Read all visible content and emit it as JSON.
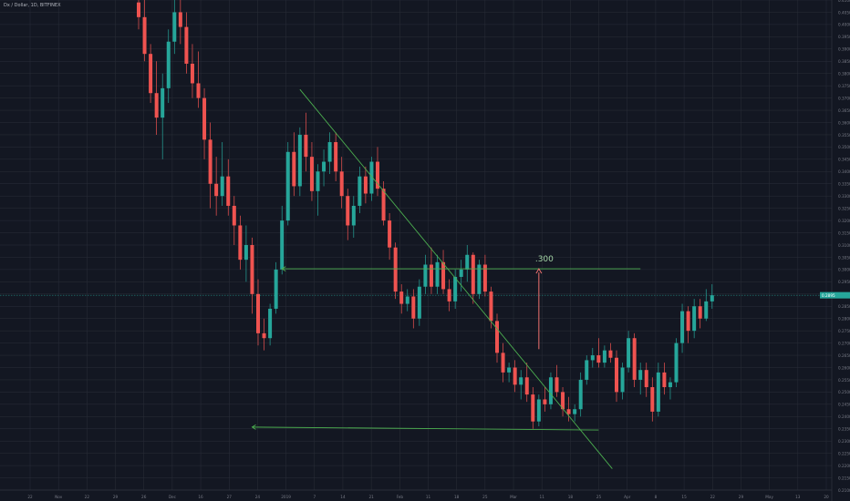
{
  "header": {
    "symbol": "Dx / Dollar, 1D, BITFINEX"
  },
  "colors": {
    "background": "#131722",
    "grid": "#2a2e39",
    "up": "#26a69a",
    "down": "#ef5350",
    "drawing": "#4caf50",
    "arrow": "#f0716f",
    "price_line": "#26a69a",
    "axis_text": "#787b86"
  },
  "chart_data": {
    "type": "candlestick",
    "title": "",
    "xlabel": "",
    "ylabel": "",
    "grid": true,
    "ylim": [
      0.21,
      0.41
    ],
    "y_axis_side": "right",
    "y_ticks": [
      "0.4100",
      "0.4050",
      "0.4000",
      "0.3950",
      "0.3900",
      "0.3850",
      "0.3800",
      "0.3750",
      "0.3700",
      "0.3650",
      "0.3600",
      "0.3550",
      "0.3500",
      "0.3450",
      "0.3400",
      "0.3350",
      "0.3300",
      "0.3250",
      "0.3200",
      "0.3150",
      "0.3100",
      "0.3050",
      "0.3000",
      "0.2950",
      "0.2900",
      "0.2850",
      "0.2800",
      "0.2750",
      "0.2700",
      "0.2650",
      "0.2600",
      "0.2550",
      "0.2500",
      "0.2450",
      "0.2400",
      "0.2350",
      "0.2300",
      "0.2250",
      "0.2200",
      "0.2150",
      "0.2100"
    ],
    "x_ticks": [
      "22",
      "Nov",
      "22",
      "29",
      "26",
      "Dec",
      "16",
      "27",
      "24",
      "2019",
      "7",
      "14",
      "21",
      "Feb",
      "11",
      "18",
      "25",
      "Mar",
      "11",
      "18",
      "25",
      "Apr",
      "8",
      "15",
      "22",
      "29",
      "May",
      "13",
      "20"
    ],
    "last_price": 0.2895,
    "last_price_label": "0.2895",
    "annotations": [
      {
        "text": ".300",
        "value": 0.3
      }
    ],
    "drawings": [
      {
        "kind": "trendline",
        "description": "descending resistance",
        "from": {
          "x_index": 27,
          "y": 0.3735
        },
        "to": {
          "x_index": 77,
          "y": 0.2255
        }
      },
      {
        "kind": "horizontal",
        "description": "breakout target",
        "from": {
          "x_index": 24,
          "y": 0.3003
        },
        "to": {
          "x_index": 84,
          "y": 0.3003
        }
      },
      {
        "kind": "horizontal",
        "description": "support",
        "from": {
          "x_index": 19,
          "y": 0.2357
        },
        "to": {
          "x_index": 77,
          "y": 0.2345
        }
      },
      {
        "kind": "arrow",
        "description": "measured move",
        "from": {
          "x_index": 67,
          "y": 0.2675
        },
        "to": {
          "x_index": 67,
          "y": 0.3003
        }
      }
    ],
    "candles": [
      {
        "o": 0.409,
        "h": 0.424,
        "l": 0.398,
        "c": 0.403
      },
      {
        "o": 0.403,
        "h": 0.412,
        "l": 0.385,
        "c": 0.388
      },
      {
        "o": 0.388,
        "h": 0.392,
        "l": 0.368,
        "c": 0.372
      },
      {
        "o": 0.372,
        "h": 0.385,
        "l": 0.355,
        "c": 0.362
      },
      {
        "o": 0.362,
        "h": 0.38,
        "l": 0.345,
        "c": 0.374
      },
      {
        "o": 0.374,
        "h": 0.398,
        "l": 0.368,
        "c": 0.393
      },
      {
        "o": 0.393,
        "h": 0.41,
        "l": 0.388,
        "c": 0.405
      },
      {
        "o": 0.405,
        "h": 0.418,
        "l": 0.392,
        "c": 0.399
      },
      {
        "o": 0.399,
        "h": 0.405,
        "l": 0.38,
        "c": 0.384
      },
      {
        "o": 0.384,
        "h": 0.392,
        "l": 0.37,
        "c": 0.376
      },
      {
        "o": 0.376,
        "h": 0.389,
        "l": 0.366,
        "c": 0.37
      },
      {
        "o": 0.37,
        "h": 0.374,
        "l": 0.345,
        "c": 0.353
      },
      {
        "o": 0.353,
        "h": 0.36,
        "l": 0.325,
        "c": 0.335
      },
      {
        "o": 0.335,
        "h": 0.346,
        "l": 0.322,
        "c": 0.33
      },
      {
        "o": 0.33,
        "h": 0.352,
        "l": 0.326,
        "c": 0.338
      },
      {
        "o": 0.338,
        "h": 0.345,
        "l": 0.322,
        "c": 0.326
      },
      {
        "o": 0.326,
        "h": 0.33,
        "l": 0.31,
        "c": 0.318
      },
      {
        "o": 0.318,
        "h": 0.322,
        "l": 0.3,
        "c": 0.304
      },
      {
        "o": 0.304,
        "h": 0.318,
        "l": 0.295,
        "c": 0.31
      },
      {
        "o": 0.31,
        "h": 0.313,
        "l": 0.282,
        "c": 0.29
      },
      {
        "o": 0.29,
        "h": 0.296,
        "l": 0.269,
        "c": 0.274
      },
      {
        "o": 0.274,
        "h": 0.28,
        "l": 0.267,
        "c": 0.272
      },
      {
        "o": 0.272,
        "h": 0.286,
        "l": 0.269,
        "c": 0.284
      },
      {
        "o": 0.284,
        "h": 0.303,
        "l": 0.282,
        "c": 0.3
      },
      {
        "o": 0.3,
        "h": 0.326,
        "l": 0.298,
        "c": 0.32
      },
      {
        "o": 0.32,
        "h": 0.352,
        "l": 0.318,
        "c": 0.348
      },
      {
        "o": 0.348,
        "h": 0.356,
        "l": 0.33,
        "c": 0.334
      },
      {
        "o": 0.334,
        "h": 0.358,
        "l": 0.33,
        "c": 0.355
      },
      {
        "o": 0.355,
        "h": 0.364,
        "l": 0.34,
        "c": 0.346
      },
      {
        "o": 0.346,
        "h": 0.352,
        "l": 0.328,
        "c": 0.332
      },
      {
        "o": 0.332,
        "h": 0.343,
        "l": 0.322,
        "c": 0.34
      },
      {
        "o": 0.34,
        "h": 0.349,
        "l": 0.334,
        "c": 0.344
      },
      {
        "o": 0.344,
        "h": 0.356,
        "l": 0.339,
        "c": 0.352
      },
      {
        "o": 0.352,
        "h": 0.356,
        "l": 0.336,
        "c": 0.34
      },
      {
        "o": 0.34,
        "h": 0.346,
        "l": 0.325,
        "c": 0.33
      },
      {
        "o": 0.33,
        "h": 0.333,
        "l": 0.312,
        "c": 0.318
      },
      {
        "o": 0.318,
        "h": 0.33,
        "l": 0.313,
        "c": 0.326
      },
      {
        "o": 0.326,
        "h": 0.342,
        "l": 0.323,
        "c": 0.338
      },
      {
        "o": 0.338,
        "h": 0.342,
        "l": 0.327,
        "c": 0.331
      },
      {
        "o": 0.331,
        "h": 0.346,
        "l": 0.328,
        "c": 0.344
      },
      {
        "o": 0.344,
        "h": 0.35,
        "l": 0.33,
        "c": 0.333
      },
      {
        "o": 0.333,
        "h": 0.336,
        "l": 0.318,
        "c": 0.32
      },
      {
        "o": 0.32,
        "h": 0.323,
        "l": 0.304,
        "c": 0.309
      },
      {
        "o": 0.309,
        "h": 0.311,
        "l": 0.288,
        "c": 0.291
      },
      {
        "o": 0.291,
        "h": 0.294,
        "l": 0.282,
        "c": 0.286
      },
      {
        "o": 0.286,
        "h": 0.292,
        "l": 0.283,
        "c": 0.289
      },
      {
        "o": 0.289,
        "h": 0.292,
        "l": 0.276,
        "c": 0.28
      },
      {
        "o": 0.28,
        "h": 0.296,
        "l": 0.277,
        "c": 0.293
      },
      {
        "o": 0.293,
        "h": 0.306,
        "l": 0.29,
        "c": 0.302
      },
      {
        "o": 0.302,
        "h": 0.309,
        "l": 0.29,
        "c": 0.293
      },
      {
        "o": 0.293,
        "h": 0.306,
        "l": 0.29,
        "c": 0.303
      },
      {
        "o": 0.303,
        "h": 0.308,
        "l": 0.29,
        "c": 0.292
      },
      {
        "o": 0.292,
        "h": 0.296,
        "l": 0.283,
        "c": 0.287
      },
      {
        "o": 0.287,
        "h": 0.3,
        "l": 0.284,
        "c": 0.297
      },
      {
        "o": 0.297,
        "h": 0.304,
        "l": 0.291,
        "c": 0.3
      },
      {
        "o": 0.3,
        "h": 0.31,
        "l": 0.295,
        "c": 0.306
      },
      {
        "o": 0.306,
        "h": 0.307,
        "l": 0.286,
        "c": 0.29
      },
      {
        "o": 0.29,
        "h": 0.304,
        "l": 0.288,
        "c": 0.302
      },
      {
        "o": 0.302,
        "h": 0.306,
        "l": 0.289,
        "c": 0.291
      },
      {
        "o": 0.291,
        "h": 0.293,
        "l": 0.276,
        "c": 0.279
      },
      {
        "o": 0.279,
        "h": 0.282,
        "l": 0.262,
        "c": 0.266
      },
      {
        "o": 0.266,
        "h": 0.27,
        "l": 0.254,
        "c": 0.258
      },
      {
        "o": 0.258,
        "h": 0.262,
        "l": 0.254,
        "c": 0.26
      },
      {
        "o": 0.26,
        "h": 0.263,
        "l": 0.25,
        "c": 0.253
      },
      {
        "o": 0.253,
        "h": 0.259,
        "l": 0.247,
        "c": 0.256
      },
      {
        "o": 0.256,
        "h": 0.262,
        "l": 0.246,
        "c": 0.249
      },
      {
        "o": 0.249,
        "h": 0.252,
        "l": 0.235,
        "c": 0.238
      },
      {
        "o": 0.238,
        "h": 0.249,
        "l": 0.236,
        "c": 0.247
      },
      {
        "o": 0.247,
        "h": 0.252,
        "l": 0.242,
        "c": 0.245
      },
      {
        "o": 0.245,
        "h": 0.258,
        "l": 0.243,
        "c": 0.256
      },
      {
        "o": 0.256,
        "h": 0.261,
        "l": 0.248,
        "c": 0.25
      },
      {
        "o": 0.25,
        "h": 0.252,
        "l": 0.24,
        "c": 0.243
      },
      {
        "o": 0.243,
        "h": 0.248,
        "l": 0.238,
        "c": 0.241
      },
      {
        "o": 0.241,
        "h": 0.245,
        "l": 0.238,
        "c": 0.243
      },
      {
        "o": 0.243,
        "h": 0.258,
        "l": 0.24,
        "c": 0.255
      },
      {
        "o": 0.255,
        "h": 0.265,
        "l": 0.253,
        "c": 0.263
      },
      {
        "o": 0.263,
        "h": 0.268,
        "l": 0.26,
        "c": 0.265
      },
      {
        "o": 0.265,
        "h": 0.272,
        "l": 0.26,
        "c": 0.262
      },
      {
        "o": 0.262,
        "h": 0.269,
        "l": 0.26,
        "c": 0.267
      },
      {
        "o": 0.267,
        "h": 0.27,
        "l": 0.262,
        "c": 0.264
      },
      {
        "o": 0.264,
        "h": 0.267,
        "l": 0.246,
        "c": 0.25
      },
      {
        "o": 0.25,
        "h": 0.262,
        "l": 0.247,
        "c": 0.26
      },
      {
        "o": 0.26,
        "h": 0.275,
        "l": 0.258,
        "c": 0.272
      },
      {
        "o": 0.272,
        "h": 0.274,
        "l": 0.252,
        "c": 0.255
      },
      {
        "o": 0.255,
        "h": 0.262,
        "l": 0.249,
        "c": 0.259
      },
      {
        "o": 0.259,
        "h": 0.262,
        "l": 0.248,
        "c": 0.252
      },
      {
        "o": 0.252,
        "h": 0.256,
        "l": 0.238,
        "c": 0.242
      },
      {
        "o": 0.242,
        "h": 0.262,
        "l": 0.24,
        "c": 0.258
      },
      {
        "o": 0.258,
        "h": 0.262,
        "l": 0.249,
        "c": 0.252
      },
      {
        "o": 0.252,
        "h": 0.256,
        "l": 0.247,
        "c": 0.254
      },
      {
        "o": 0.254,
        "h": 0.272,
        "l": 0.252,
        "c": 0.27
      },
      {
        "o": 0.27,
        "h": 0.286,
        "l": 0.266,
        "c": 0.283
      },
      {
        "o": 0.283,
        "h": 0.285,
        "l": 0.27,
        "c": 0.275
      },
      {
        "o": 0.275,
        "h": 0.288,
        "l": 0.272,
        "c": 0.285
      },
      {
        "o": 0.285,
        "h": 0.288,
        "l": 0.276,
        "c": 0.28
      },
      {
        "o": 0.28,
        "h": 0.292,
        "l": 0.279,
        "c": 0.287
      },
      {
        "o": 0.287,
        "h": 0.294,
        "l": 0.284,
        "c": 0.2895
      }
    ]
  }
}
